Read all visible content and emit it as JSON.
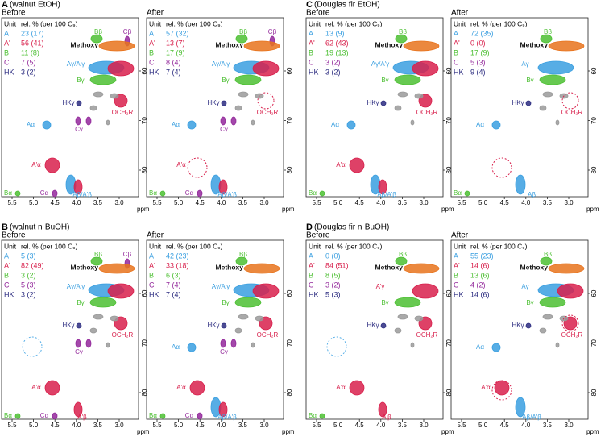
{
  "table_header": {
    "unit": "Unit",
    "rel": "rel. % (per 100 C₉)"
  },
  "axis": {
    "x_ticks": [
      5.5,
      {
        "value": 5,
        "label": "5.0"
      },
      4.5,
      {
        "value": 4,
        "label": "4.0"
      },
      3.5,
      {
        "value": 3,
        "label": "3.0"
      }
    ],
    "y_ticks": [
      60,
      70,
      80
    ],
    "unit": "ppm"
  },
  "groups": [
    {
      "letter": "A",
      "text": "(walnut EtOH)",
      "panels": [
        {
          "title": "Before",
          "rows": [
            [
              "A",
              "23 (17)"
            ],
            [
              "A'",
              "56 (41)"
            ],
            [
              "B",
              "11 (8)"
            ],
            [
              "C",
              "7 (5)"
            ],
            [
              "HK",
              "3 (2)"
            ]
          ],
          "labels": [
            "Bβ",
            "Cβ",
            "Methoxy",
            "Aγ/A'γ",
            "Bγ",
            "OCH₂R",
            "HKγ",
            "Aα",
            "Cγ",
            "A'α",
            "Bα",
            "Cα",
            "Aβ/A'β"
          ]
        },
        {
          "title": "After",
          "rows": [
            [
              "A",
              "57 (32)"
            ],
            [
              "A'",
              "13 (7)"
            ],
            [
              "B",
              "17 (9)"
            ],
            [
              "C",
              "8 (4)"
            ],
            [
              "HK",
              "7 (4)"
            ]
          ],
          "labels": [
            "Bβ",
            "Cβ",
            "Methoxy",
            "Aγ/A'γ",
            "Bγ",
            "OCH₂R",
            "HKγ",
            "Aα",
            "Cγ",
            "A'α",
            "Bα",
            "Cα",
            "Aβ/A'β"
          ]
        }
      ]
    },
    {
      "letter": "C",
      "text": "(Douglas fir EtOH)",
      "panels": [
        {
          "title": "Before",
          "rows": [
            [
              "A",
              "13 (9)"
            ],
            [
              "A'",
              "62 (43)"
            ],
            [
              "B",
              "19 (13)"
            ],
            [
              "C",
              "3 (2)"
            ],
            [
              "HK",
              "3 (2)"
            ]
          ],
          "labels": [
            "Bβ",
            "Methoxy",
            "Aγ/A'γ",
            "Bγ",
            "OCH₂R",
            "HKγ",
            "Aα",
            "A'α",
            "Bα",
            "Aβ/A'β"
          ]
        },
        {
          "title": "After",
          "rows": [
            [
              "A",
              "72 (35)"
            ],
            [
              "A'",
              "0 (0)"
            ],
            [
              "B",
              "17 (9)"
            ],
            [
              "C",
              "5 (3)"
            ],
            [
              "HK",
              "9 (4)"
            ]
          ],
          "labels": [
            "Bβ",
            "Methoxy",
            "Aγ",
            "Bγ",
            "OCH₂R",
            "HKγ",
            "Aα",
            "Bα",
            "Aβ"
          ]
        }
      ]
    },
    {
      "letter": "B",
      "text": "(walnut n-BuOH)",
      "panels": [
        {
          "title": "Before",
          "rows": [
            [
              "A",
              "5 (3)"
            ],
            [
              "A'",
              "82 (49)"
            ],
            [
              "B",
              "3 (2)"
            ],
            [
              "C",
              "5 (3)"
            ],
            [
              "HK",
              "3 (2)"
            ]
          ],
          "labels": [
            "Bβ",
            "Cβ",
            "Methoxy",
            "Aγ/A'γ",
            "Bγ",
            "HKγ",
            "OCH₂R",
            "Cγ",
            "A'α",
            "Bα",
            "Cα",
            "A'β"
          ]
        },
        {
          "title": "After",
          "rows": [
            [
              "A",
              "42 (23)"
            ],
            [
              "A'",
              "33 (18)"
            ],
            [
              "B",
              "6 (3)"
            ],
            [
              "C",
              "7 (4)"
            ],
            [
              "HK",
              "7 (4)"
            ]
          ],
          "labels": [
            "Bβ",
            "Methoxy",
            "Aγ/A'γ",
            "Bγ",
            "HKγ",
            "Aα",
            "Cγ",
            "OCH₂R",
            "A'α",
            "Bα",
            "Cα",
            "Aβ/A'β"
          ]
        }
      ]
    },
    {
      "letter": "D",
      "text": "(Douglas fir n-BuOH)",
      "panels": [
        {
          "title": "Before",
          "rows": [
            [
              "A",
              "0 (0)"
            ],
            [
              "A'",
              "84 (51)"
            ],
            [
              "B",
              "8 (5)"
            ],
            [
              "C",
              "3 (2)"
            ],
            [
              "HK",
              "5 (3)"
            ]
          ],
          "labels": [
            "Bβ",
            "Methoxy",
            "A'γ",
            "Bγ",
            "HKγ",
            "OCH₂R",
            "A'α",
            "Bα",
            "A'β"
          ]
        },
        {
          "title": "After",
          "rows": [
            [
              "A",
              "55 (23)"
            ],
            [
              "A'",
              "14 (6)"
            ],
            [
              "B",
              "13 (6)"
            ],
            [
              "C",
              "4 (2)"
            ],
            [
              "HK",
              "14 (6)"
            ]
          ],
          "labels": [
            "Bβ",
            "Methoxy",
            "Aγ",
            "Bγ",
            "HKγ",
            "Aα",
            "OCH₂R",
            "A'α",
            "Aβ/A'β"
          ]
        }
      ]
    }
  ]
}
